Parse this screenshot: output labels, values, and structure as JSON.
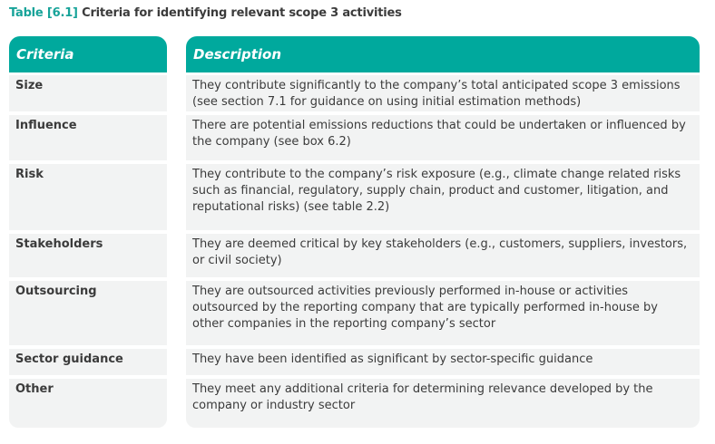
{
  "title": {
    "label": "Table [6.1]",
    "text": "Criteria for identifying relevant scope 3 activities"
  },
  "colors": {
    "accent": "#00a99d",
    "row_bg": "#f2f3f3"
  },
  "headers": {
    "criteria": "Criteria",
    "description": "Description"
  },
  "rows": [
    {
      "criteria": "Size",
      "description": "They contribute significantly to the company’s total anticipated scope 3 emissions (see section 7.1 for guidance on using initial estimation methods)"
    },
    {
      "criteria": "Influence",
      "description": "There are potential emissions reductions that could be undertaken or influenced by the company (see box 6.2)"
    },
    {
      "criteria": "Risk",
      "description": "They contribute to the company’s risk exposure (e.g., climate change related risks such as financial, regulatory, supply chain, product and customer, litigation, and reputational risks) (see table 2.2)"
    },
    {
      "criteria": "Stakeholders",
      "description": "They are deemed critical by key stakeholders (e.g., customers, suppliers, investors, or civil society)"
    },
    {
      "criteria": "Outsourcing",
      "description": "They are outsourced activities previously performed in-house or activities outsourced by the reporting company that are typically performed in-house by other companies in the reporting company’s sector"
    },
    {
      "criteria": "Sector guidance",
      "description": "They have been identified as significant by sector-specific guidance"
    },
    {
      "criteria": "Other",
      "description": "They meet any additional criteria for determining relevance developed by the company or industry sector"
    }
  ]
}
